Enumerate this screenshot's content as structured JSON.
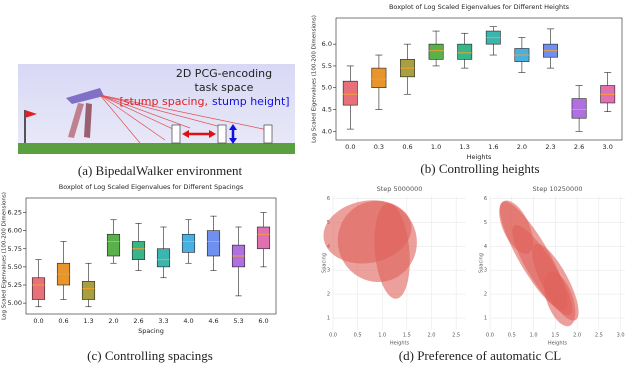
{
  "walker": {
    "line1": "2D PCG-encoding",
    "line2": "task space",
    "spacing": "[stump spacing,",
    "height": "stump height]"
  },
  "captions": {
    "a": "(a) BipedalWalker environment",
    "b": "(b) Controlling heights",
    "c": "(c) Controlling spacings",
    "d": "(d) Preference of automatic CL"
  },
  "chart_data": [
    {
      "type": "box",
      "title": "Boxplot of Log Scaled Eigenvalues for Different Heights",
      "x_label": "Heights",
      "y_label": "Log Scaled Eigenvalues (100-200 Dimensions)",
      "categories": [
        "0.0",
        "0.3",
        "0.6",
        "1.0",
        "1.3",
        "1.6",
        "2.0",
        "2.3",
        "2.6",
        "3.0"
      ],
      "colors": [
        "#e8707a",
        "#e8952e",
        "#a8a040",
        "#5ab04a",
        "#3ab58a",
        "#3ab5b0",
        "#4ab0e0",
        "#7090f0",
        "#b070e0",
        "#e070b0"
      ],
      "boxes": [
        [
          4.05,
          4.6,
          4.85,
          5.15,
          5.5
        ],
        [
          4.5,
          5.0,
          5.2,
          5.45,
          5.75
        ],
        [
          4.85,
          5.25,
          5.45,
          5.65,
          6.0
        ],
        [
          5.5,
          5.65,
          5.85,
          6.0,
          6.3
        ],
        [
          5.45,
          5.65,
          5.8,
          6.0,
          6.25
        ],
        [
          5.75,
          6.0,
          6.15,
          6.3,
          6.4
        ],
        [
          5.35,
          5.6,
          5.75,
          5.9,
          6.15
        ],
        [
          5.45,
          5.7,
          5.85,
          6.0,
          6.35
        ],
        [
          4.0,
          4.3,
          4.5,
          4.75,
          5.05
        ],
        [
          4.45,
          4.65,
          4.85,
          5.05,
          5.35
        ]
      ],
      "ylim": [
        3.8,
        6.6
      ],
      "yticks": [
        {
          "value": 4.0,
          "label": "4.0"
        },
        4.5,
        {
          "value": 5.0,
          "label": "5.0"
        },
        5.5,
        {
          "value": 6.0,
          "label": "6.0"
        }
      ]
    },
    {
      "type": "box",
      "title": "Boxplot of Log Scaled Eigenvalues for Different Spacings",
      "x_label": "Spacing",
      "y_label": "Log Scaled Eigenvalues (100-200 Dimensions)",
      "categories": [
        "0.0",
        "0.6",
        "1.3",
        "2.0",
        "2.6",
        "3.3",
        "4.0",
        "4.6",
        "5.3",
        "6.0"
      ],
      "colors": [
        "#e8707a",
        "#e8952e",
        "#a8a040",
        "#5ab04a",
        "#3ab58a",
        "#3ab5b0",
        "#4ab0e0",
        "#7090f0",
        "#b070e0",
        "#e070b0"
      ],
      "boxes": [
        [
          4.95,
          5.05,
          5.25,
          5.35,
          5.6
        ],
        [
          5.05,
          5.25,
          5.4,
          5.55,
          5.85
        ],
        [
          4.95,
          5.05,
          5.2,
          5.3,
          5.55
        ],
        [
          5.55,
          5.65,
          5.85,
          5.95,
          6.15
        ],
        [
          5.45,
          5.6,
          5.75,
          5.85,
          6.1
        ],
        [
          5.35,
          5.5,
          5.6,
          5.75,
          6.05
        ],
        [
          5.55,
          5.7,
          5.85,
          5.95,
          6.15
        ],
        [
          5.45,
          5.65,
          5.85,
          6.0,
          6.2
        ],
        [
          5.1,
          5.5,
          5.65,
          5.8,
          6.05
        ],
        [
          5.5,
          5.75,
          5.95,
          6.05,
          6.25
        ]
      ],
      "ylim": [
        4.85,
        6.45
      ],
      "yticks": [
        {
          "value": 5.0,
          "label": "5.00"
        },
        5.25,
        {
          "value": 5.5,
          "label": "5.50"
        },
        5.75,
        {
          "value": 6.0,
          "label": "6.00"
        },
        6.25
      ]
    },
    {
      "type": "ellipse",
      "title": "Step 5000000",
      "x_label": "Heights",
      "y_label": "Spacing",
      "color": "#e0605a",
      "grid": true,
      "xlim": [
        0,
        2.7
      ],
      "ylim": [
        0.5,
        6.1
      ],
      "xticks": [
        {
          "value": 0,
          "label": "0.0"
        },
        0.5,
        {
          "value": 1,
          "label": "1.0"
        },
        1.5,
        {
          "value": 2,
          "label": "2.0"
        },
        2.5
      ],
      "yticks": [
        1,
        2,
        3,
        4,
        5,
        6
      ],
      "ellipses": [
        {
          "x": 0.9,
          "y": 4.2,
          "rx": 0.8,
          "ry": 1.7,
          "angle": -20
        },
        {
          "x": 0.7,
          "y": 4.6,
          "rx": 0.9,
          "ry": 1.3,
          "angle": -10
        },
        {
          "x": 1.2,
          "y": 3.8,
          "rx": 0.35,
          "ry": 2.0,
          "angle": -5
        }
      ]
    },
    {
      "type": "ellipse",
      "title": "Step 10250000",
      "x_label": "Heights",
      "y_label": "Spacing",
      "color": "#e0605a",
      "grid": true,
      "xlim": [
        0,
        3.1
      ],
      "ylim": [
        0.5,
        6.1
      ],
      "xticks": [
        {
          "value": 0,
          "label": "0.0"
        },
        0.5,
        {
          "value": 1,
          "label": "1.0"
        },
        1.5,
        {
          "value": 2,
          "label": "2.0"
        },
        2.5,
        {
          "value": 3,
          "label": "3.0"
        }
      ],
      "yticks": [
        1,
        2,
        3,
        4,
        5,
        6
      ],
      "ellipses": [
        {
          "x": 1.0,
          "y": 3.6,
          "rx": 0.35,
          "ry": 2.6,
          "angle": -30
        },
        {
          "x": 1.5,
          "y": 2.5,
          "rx": 0.3,
          "ry": 1.8,
          "angle": -28
        },
        {
          "x": 0.6,
          "y": 4.8,
          "rx": 0.3,
          "ry": 1.2,
          "angle": -25
        },
        {
          "x": 1.6,
          "y": 1.8,
          "rx": 0.3,
          "ry": 1.2,
          "angle": -20
        },
        {
          "x": 1.2,
          "y": 3.0,
          "rx": 0.3,
          "ry": 2.2,
          "angle": -32
        }
      ]
    }
  ]
}
